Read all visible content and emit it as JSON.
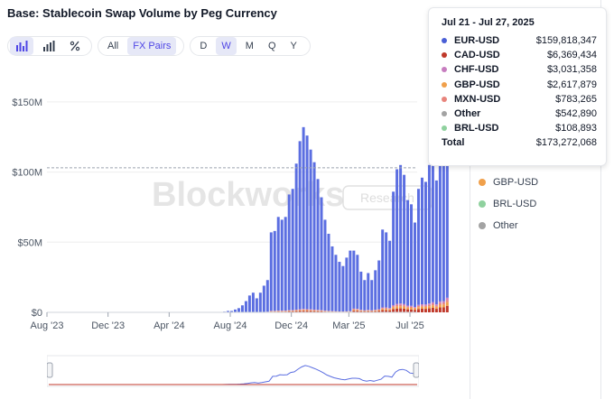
{
  "title": "Base: Stablecoin Swap Volume by Peg Currency",
  "toolbar": {
    "chart_types": [
      "bar-chart-icon",
      "stacked-bar-icon",
      "percent-icon"
    ],
    "filters": [
      "All",
      "FX Pairs"
    ],
    "active_filter": "FX Pairs",
    "intervals": [
      "D",
      "W",
      "M",
      "Q",
      "Y"
    ],
    "active_interval": "W"
  },
  "watermark": {
    "brand": "Blockworks",
    "sub": "Research"
  },
  "tooltip": {
    "period": "Jul 21 - Jul 27, 2025",
    "rows": [
      {
        "name": "EUR-USD",
        "value": "$159,818,347",
        "color": "#4a5fd6"
      },
      {
        "name": "CAD-USD",
        "value": "$6,369,434",
        "color": "#c0392b"
      },
      {
        "name": "CHF-USD",
        "value": "$3,031,358",
        "color": "#c77dbf"
      },
      {
        "name": "GBP-USD",
        "value": "$2,617,879",
        "color": "#f0a04b"
      },
      {
        "name": "MXN-USD",
        "value": "$783,265",
        "color": "#e8847c"
      },
      {
        "name": "Other",
        "value": "$542,890",
        "color": "#a3a3a3"
      },
      {
        "name": "BRL-USD",
        "value": "$108,893",
        "color": "#8fd19e"
      }
    ],
    "total_label": "Total",
    "total_value": "$173,272,068"
  },
  "legend_visible": [
    {
      "name": "GBP-USD",
      "color": "#f0a04b"
    },
    {
      "name": "BRL-USD",
      "color": "#8fd19e"
    },
    {
      "name": "Other",
      "color": "#a3a3a3"
    }
  ],
  "chart_data": {
    "type": "bar",
    "title": "Base: Stablecoin Swap Volume by Peg Currency",
    "xlabel": "",
    "ylabel": "",
    "y_tick_labels": [
      "$0",
      "$50M",
      "$100M",
      "$150M"
    ],
    "y_ticks": [
      0,
      50,
      100,
      150
    ],
    "ylim": [
      0,
      175
    ],
    "x_tick_labels": [
      "Aug '23",
      "Dec '23",
      "Apr '24",
      "Aug '24",
      "Dec '24",
      "Mar '25",
      "Jul '25"
    ],
    "x_tick_positions": [
      0,
      17,
      34,
      51,
      68,
      84,
      101
    ],
    "crosshair_value": 103,
    "unit": "USD millions, weekly",
    "series_main_name": "EUR-USD",
    "weeks": 103,
    "nonzero_start_week": 49,
    "values": [
      0.5,
      1,
      1,
      2,
      3,
      5,
      8,
      12,
      14,
      10,
      14,
      19,
      23,
      57,
      58,
      68,
      66,
      68,
      84,
      88,
      106,
      122,
      132,
      126,
      116,
      107,
      95,
      82,
      66,
      56,
      47,
      41,
      36,
      33,
      39,
      44,
      44,
      41,
      29,
      23,
      28,
      23,
      30,
      37,
      59,
      57,
      51,
      86,
      102,
      105,
      98,
      80,
      77,
      64,
      88,
      96,
      93,
      105,
      120,
      94,
      130,
      132,
      173
    ],
    "minor_series_fraction": 0.06
  }
}
